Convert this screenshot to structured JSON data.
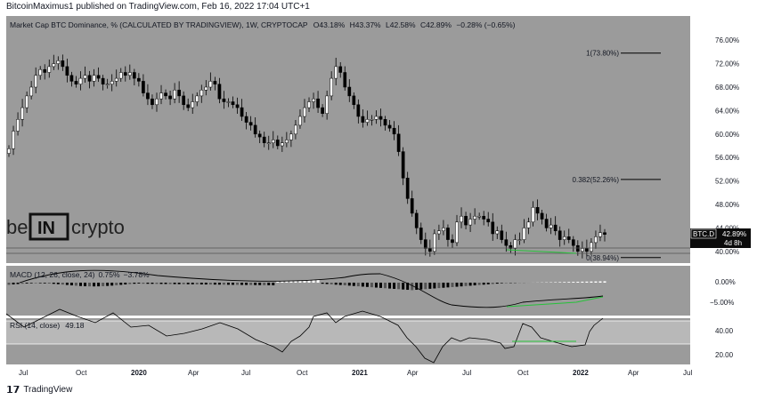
{
  "header": {
    "published_line": "BitcoinMaximus1 published on TradingView.com, Feb 16, 2022 17:04 UTC+1"
  },
  "footer": {
    "brand": "TradingView",
    "logo_icon": "tradingview-logo-icon"
  },
  "watermark": {
    "text_left": "be",
    "text_box": "IN",
    "text_right": "crypto"
  },
  "main_panel": {
    "title_prefix": "Market Cap BTC Dominance, % (CALCULATED BY TRADINGVIEW), 1W, CRYPTOCAP",
    "o_label": "O",
    "o_value": "43.18%",
    "h_label": "H",
    "h_value": "43.37%",
    "l_label": "L",
    "l_value": "42.58%",
    "c_label": "C",
    "c_value": "42.89%",
    "change": "−0.28% (−0.65%)",
    "price_tag_symbol": "BTC.D",
    "price_tag_value": "42.89%",
    "price_tag_countdown": "4d 8h",
    "fib_levels": [
      {
        "label": "1(73.80%)",
        "value": 73.8
      },
      {
        "label": "0.382(52.26%)",
        "value": 52.26
      },
      {
        "label": "0(38.94%)",
        "value": 38.94
      }
    ],
    "y_ticks": [
      "76.00%",
      "72.00%",
      "68.00%",
      "64.00%",
      "60.00%",
      "56.00%",
      "52.00%",
      "48.00%",
      "44.00%",
      "40.00%"
    ]
  },
  "macd_panel": {
    "label": "MACD (12, 26, close, 24)",
    "value1": "0.75%",
    "value2": "−3.78%",
    "y_ticks": [
      "0.00%",
      "−5.00%"
    ]
  },
  "rsi_panel": {
    "label": "RSI (14, close)",
    "value": "49.18",
    "y_ticks": [
      "40.00",
      "20.00"
    ]
  },
  "x_axis": {
    "ticks": [
      "Jul",
      "Oct",
      "2020",
      "Apr",
      "Jul",
      "Oct",
      "2021",
      "Apr",
      "Jul",
      "Oct",
      "2022",
      "Apr",
      "Jul"
    ]
  },
  "colors": {
    "panel_bg": "#9b9b9b",
    "up": "#ffffff",
    "down": "#000000",
    "divergence": "#27c23a",
    "rsi_band": "#b8b8b8"
  },
  "chart_data": {
    "type": "candlestick",
    "title": "Market Cap BTC Dominance, % (CALCULATED BY TRADINGVIEW), 1W, CRYPTOCAP",
    "ylim": [
      38,
      78
    ],
    "weekly_close": [
      57.5,
      60.5,
      62.5,
      64.5,
      66.5,
      68,
      70,
      71,
      70.5,
      71.5,
      72,
      72.5,
      71.5,
      70,
      69,
      68.5,
      69.5,
      70,
      69,
      70,
      69.5,
      68.5,
      68.5,
      69,
      69.5,
      70.5,
      70,
      70.5,
      69.5,
      69,
      67,
      66,
      65,
      66,
      67,
      66.5,
      66,
      67.5,
      66.5,
      65,
      64.5,
      65.5,
      66.5,
      67.5,
      68,
      69,
      68.5,
      66,
      65.5,
      65.5,
      65,
      64.5,
      63,
      62,
      61.5,
      60,
      59.5,
      58.5,
      58.5,
      59,
      58,
      58.5,
      59,
      60,
      61.5,
      63,
      64.5,
      65.5,
      66,
      64.5,
      63.5,
      66.5,
      69.5,
      71.5,
      70.5,
      68,
      66.5,
      65,
      63,
      62,
      62.5,
      62.5,
      63,
      62.5,
      61.5,
      61,
      60,
      57,
      52.5,
      49,
      46.5,
      44,
      42,
      40.5,
      40,
      43,
      43.5,
      44,
      42,
      41.5,
      45,
      46,
      44.5,
      45.5,
      46,
      46,
      45.5,
      45,
      43,
      43.5,
      42,
      41,
      40.5,
      42,
      42,
      44,
      45,
      47.5,
      46.5,
      45.5,
      44,
      44.5,
      43.5,
      42,
      42.5,
      42,
      41,
      40,
      40.5,
      40,
      41.5,
      42.5,
      43.2,
      42.89
    ],
    "macd_histogram_note": "weekly MACD histogram, negative through 2021, turning positive early 2022",
    "rsi_last": 49.18
  }
}
